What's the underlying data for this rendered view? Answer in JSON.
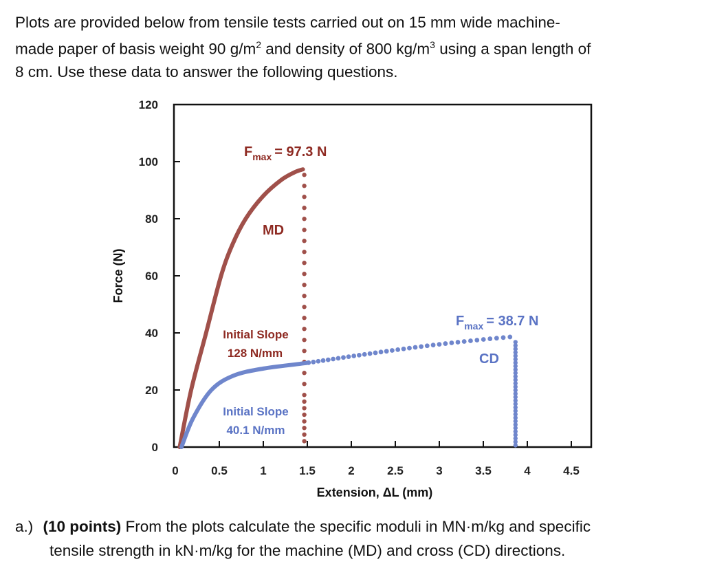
{
  "intro": {
    "line1": "Plots are provided below from tensile tests carried out on 15 mm wide machine-",
    "line2a": "made paper of basis weight 90 g/m",
    "sup2": "2",
    "line2b": " and density of 800 kg/m",
    "sup3": "3",
    "line2c": " using a span length of",
    "line3": "8 cm.  Use these data to answer the following questions."
  },
  "question": {
    "label": "a.)",
    "points": "(10 points)",
    "text1": " From the plots calculate the specific moduli in MN·m/kg and specific",
    "text2": "tensile strength in kN·m/kg for the machine (MD) and cross (CD) directions."
  },
  "chart_data": {
    "type": "line",
    "xlabel": "Extension, ΔL (mm)",
    "ylabel": "Force (N)",
    "xlim": [
      0,
      4.72
    ],
    "ylim": [
      0,
      120
    ],
    "xticks": [
      "0",
      "0.5",
      "1",
      "1.5",
      "2",
      "2.5",
      "3",
      "3.5",
      "4",
      "4.5"
    ],
    "xtick_values": [
      0,
      0.5,
      1,
      1.5,
      2,
      2.5,
      3,
      3.5,
      4,
      4.5
    ],
    "yticks": [
      "0",
      "20",
      "40",
      "60",
      "80",
      "100",
      "120"
    ],
    "ytick_values": [
      0,
      20,
      40,
      60,
      80,
      100,
      120
    ],
    "grid": false,
    "series": [
      {
        "name": "MD",
        "color": "#a0504a",
        "x": [
          0.05,
          0.18,
          0.35,
          0.52,
          0.65,
          0.8,
          1.0,
          1.2,
          1.35,
          1.45
        ],
        "y": [
          0,
          20,
          40,
          60,
          71,
          80,
          88,
          93.5,
          96.2,
          97.3
        ],
        "break_x": 1.45
      },
      {
        "name": "CD",
        "color": "#6f86cc",
        "x": [
          0.07,
          0.2,
          0.41,
          0.66,
          1.0,
          1.5,
          2.0,
          2.5,
          3.0,
          3.5,
          3.85
        ],
        "y": [
          0,
          10,
          20,
          25,
          27.5,
          29.5,
          31.8,
          34,
          36,
          37.7,
          38.7
        ],
        "break_x": 3.85
      }
    ],
    "annotations": {
      "md_fmax_sub": "max",
      "md_fmax_F": "F",
      "md_fmax_val": "= 97.3 N",
      "md_label": "MD",
      "md_slope_1": "Initial Slope",
      "md_slope_2": "128 N/mm",
      "cd_fmax_F": "F",
      "cd_fmax_sub": "max",
      "cd_fmax_val": "= 38.7 N",
      "cd_label": "CD",
      "cd_slope_1": "Initial Slope",
      "cd_slope_2": "40.1 N/mm"
    }
  }
}
